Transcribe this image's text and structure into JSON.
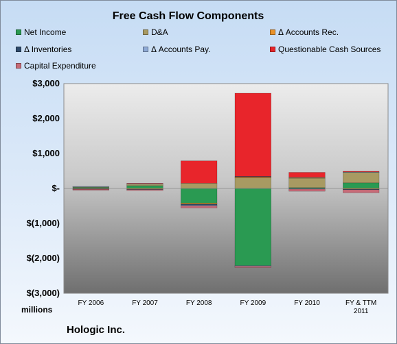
{
  "chart_data": {
    "type": "bar",
    "stacked": true,
    "title": "Free Cash Flow Components",
    "categories": [
      "FY 2006",
      "FY 2007",
      "FY 2008",
      "FY 2009",
      "FY 2010",
      "FY & TTM 2011"
    ],
    "category_lines": [
      [
        "FY 2006"
      ],
      [
        "FY 2007"
      ],
      [
        "FY 2008"
      ],
      [
        "FY 2009"
      ],
      [
        "FY 2010"
      ],
      [
        "FY & TTM",
        "2011"
      ]
    ],
    "series": [
      {
        "name": "Net Income",
        "color": "#2a9a52",
        "values": [
          30,
          80,
          -420,
          -2210,
          25,
          160
        ]
      },
      {
        "name": "D&A",
        "color": "#a89a62",
        "values": [
          20,
          45,
          150,
          300,
          270,
          300
        ]
      },
      {
        "name": "Δ Accounts Rec.",
        "color": "#e9922a",
        "values": [
          -10,
          -20,
          -30,
          25,
          15,
          -20
        ]
      },
      {
        "name": "Δ Inventories",
        "color": "#2e4a6b",
        "values": [
          -5,
          -10,
          -30,
          20,
          -20,
          -15
        ]
      },
      {
        "name": "Δ Accounts Pay.",
        "color": "#8eaad6",
        "values": [
          5,
          15,
          -20,
          -15,
          10,
          10
        ]
      },
      {
        "name": "Questionable Cash Sources",
        "color": "#e8252b",
        "values": [
          -10,
          10,
          640,
          2380,
          140,
          20
        ]
      },
      {
        "name": "Capital Expenditure",
        "color": "#c76b78",
        "values": [
          -25,
          -30,
          -60,
          -40,
          -60,
          -90
        ]
      }
    ],
    "ylim": [
      -3000,
      3000
    ],
    "yticks": [
      3000,
      2000,
      1000,
      0,
      -1000,
      -2000,
      -3000
    ],
    "ytick_labels": [
      "$3,000",
      "$2,000",
      "$1,000",
      "$-",
      "$(1,000)",
      "$(2,000)",
      "$(3,000)"
    ],
    "ylabel": "millions",
    "grid": false,
    "legend_position": "top"
  },
  "footer": {
    "company": "Hologic Inc.",
    "units": "millions"
  }
}
